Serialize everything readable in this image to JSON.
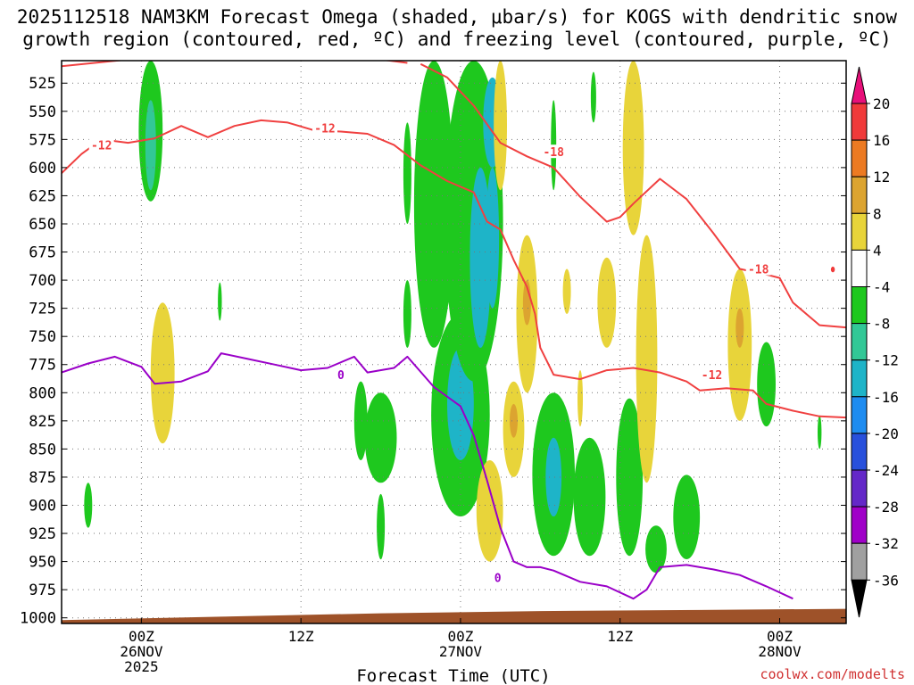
{
  "header": {
    "title_line1": "2025112518 NAM3KM Forecast Omega (shaded, μbar/s) for KOGS with dendritic snow",
    "title_line2": "growth region (contoured, red, ºC) and freezing level (contoured, purple, ºC)"
  },
  "footer": {
    "xlabel": "Forecast Time (UTC)",
    "credit": "coolwx.com/modelts"
  },
  "colors": {
    "dgz_contour": "#f04040",
    "freezing_contour": "#9a00c8",
    "terrain": "#9e5229",
    "credit": "#d03030"
  },
  "chart_data": {
    "type": "time-height",
    "y_axis": {
      "label": "Pressure (hPa)",
      "ticks": [
        "525",
        "550",
        "575",
        "600",
        "625",
        "650",
        "675",
        "700",
        "725",
        "750",
        "775",
        "800",
        "825",
        "850",
        "875",
        "900",
        "925",
        "950",
        "975",
        "1000"
      ],
      "range": [
        1005,
        505
      ]
    },
    "x_axis": {
      "range_hours": [
        -6,
        53
      ],
      "ticks": [
        {
          "hour": 0,
          "label": "00Z",
          "sub": "26NOV",
          "sub2": "2025"
        },
        {
          "hour": 12,
          "label": "12Z",
          "sub": "",
          "sub2": ""
        },
        {
          "hour": 24,
          "label": "00Z",
          "sub": "27NOV",
          "sub2": ""
        },
        {
          "hour": 36,
          "label": "12Z",
          "sub": "",
          "sub2": ""
        },
        {
          "hour": 48,
          "label": "00Z",
          "sub": "28NOV",
          "sub2": ""
        }
      ]
    },
    "colorbar": {
      "labels": [
        "20",
        "16",
        "12",
        "8",
        "4",
        "-4",
        "-8",
        "-12",
        "-16",
        "-20",
        "-24",
        "-28",
        "-32",
        "-36"
      ],
      "colors": [
        "#f03a3a",
        "#ec7a22",
        "#dca430",
        "#e8d43a",
        "#ffffff",
        "#1ec81e",
        "#32c896",
        "#1eb4c8",
        "#1e8cf0",
        "#2850dc",
        "#6428c8",
        "#a000c8",
        "#a0a0a0"
      ],
      "top_color": "#e8107a",
      "bottom_color": "#000000"
    },
    "contour_labels": [
      {
        "text": "-12",
        "hour": -3.0,
        "p": 580
      },
      {
        "text": "-12",
        "hour": 13.8,
        "p": 565
      },
      {
        "text": "-18",
        "hour": 31.0,
        "p": 586
      },
      {
        "text": "-12",
        "hour": 42.9,
        "p": 784
      },
      {
        "text": "-18",
        "hour": 46.4,
        "p": 690
      },
      {
        "text": "0",
        "hour": 15.0,
        "p": 784
      },
      {
        "text": "0",
        "hour": 26.8,
        "p": 964
      }
    ],
    "dgz_minus12": [
      [
        -6,
        605
      ],
      [
        -4.5,
        588
      ],
      [
        -3,
        575
      ],
      [
        -1,
        578
      ],
      [
        1,
        574
      ],
      [
        3,
        563
      ],
      [
        5,
        573
      ],
      [
        7,
        563
      ],
      [
        9,
        558
      ],
      [
        11,
        560
      ],
      [
        13,
        567
      ],
      [
        15,
        568
      ],
      [
        17,
        570
      ],
      [
        19,
        580
      ],
      [
        21,
        598
      ],
      [
        23,
        612
      ],
      [
        25,
        622
      ],
      [
        26,
        648
      ],
      [
        27,
        655
      ],
      [
        28,
        682
      ],
      [
        29,
        706
      ],
      [
        29.6,
        730
      ],
      [
        30,
        760
      ],
      [
        31,
        784
      ],
      [
        33,
        788
      ],
      [
        35,
        780
      ],
      [
        37,
        778
      ],
      [
        39,
        782
      ],
      [
        41,
        790
      ],
      [
        42,
        798
      ],
      [
        44,
        796
      ],
      [
        46,
        798
      ],
      [
        47,
        810
      ],
      [
        49,
        816
      ],
      [
        51,
        821
      ],
      [
        53,
        822
      ]
    ],
    "dgz_minus18": [
      [
        21,
        508
      ],
      [
        23,
        520
      ],
      [
        25,
        545
      ],
      [
        27,
        578
      ],
      [
        29,
        590
      ],
      [
        31,
        600
      ],
      [
        33,
        626
      ],
      [
        35,
        648
      ],
      [
        36,
        644
      ],
      [
        37,
        632
      ],
      [
        39,
        610
      ],
      [
        41,
        628
      ],
      [
        43,
        658
      ],
      [
        45,
        690
      ],
      [
        47,
        695
      ],
      [
        48,
        698
      ],
      [
        49,
        720
      ],
      [
        51,
        740
      ],
      [
        53,
        742
      ]
    ],
    "dgz_minus12_top": [
      [
        -6,
        510
      ],
      [
        -1,
        504
      ],
      [
        4,
        501
      ],
      [
        12,
        504
      ],
      [
        18,
        504
      ],
      [
        20,
        507
      ]
    ],
    "freezing_level": [
      [
        -6,
        782
      ],
      [
        -4,
        774
      ],
      [
        -2,
        768
      ],
      [
        0,
        777
      ],
      [
        1,
        792
      ],
      [
        3,
        790
      ],
      [
        5,
        781
      ],
      [
        6,
        765
      ],
      [
        8,
        770
      ],
      [
        10,
        775
      ],
      [
        12,
        780
      ],
      [
        14,
        778
      ],
      [
        16,
        768
      ],
      [
        17,
        782
      ],
      [
        19,
        778
      ],
      [
        20,
        768
      ],
      [
        22,
        795
      ],
      [
        24,
        812
      ],
      [
        25,
        838
      ],
      [
        26,
        878
      ],
      [
        27,
        920
      ],
      [
        28,
        950
      ],
      [
        29,
        955
      ],
      [
        30,
        955
      ],
      [
        31,
        958
      ],
      [
        33,
        968
      ],
      [
        35,
        972
      ],
      [
        37,
        983
      ],
      [
        38,
        975
      ],
      [
        39,
        955
      ],
      [
        41,
        953
      ],
      [
        43,
        957
      ],
      [
        45,
        962
      ],
      [
        47,
        972
      ],
      [
        49,
        983
      ]
    ],
    "terrain_p": [
      [
        -6,
        1002
      ],
      [
        6,
        999
      ],
      [
        18,
        996
      ],
      [
        30,
        994
      ],
      [
        42,
        993
      ],
      [
        53,
        992
      ]
    ],
    "omega_blobs": [
      {
        "hour": 0.7,
        "p1": 505,
        "p2": 630,
        "half_width_h": 0.9,
        "value": -6
      },
      {
        "hour": 0.7,
        "p1": 540,
        "p2": 620,
        "half_width_h": 0.4,
        "value": -10
      },
      {
        "hour": 1.6,
        "p1": 720,
        "p2": 845,
        "half_width_h": 0.9,
        "value": 6
      },
      {
        "hour": -4.0,
        "p1": 880,
        "p2": 920,
        "half_width_h": 0.3,
        "value": -6
      },
      {
        "hour": 5.9,
        "p1": 702,
        "p2": 736,
        "half_width_h": 0.15,
        "value": -6
      },
      {
        "hour": 16.5,
        "p1": 790,
        "p2": 860,
        "half_width_h": 0.5,
        "value": -6
      },
      {
        "hour": 18.0,
        "p1": 800,
        "p2": 880,
        "half_width_h": 1.2,
        "value": -6
      },
      {
        "hour": 18.0,
        "p1": 890,
        "p2": 948,
        "half_width_h": 0.3,
        "value": -6
      },
      {
        "hour": 20.0,
        "p1": 700,
        "p2": 760,
        "half_width_h": 0.3,
        "value": -6
      },
      {
        "hour": 20.0,
        "p1": 560,
        "p2": 650,
        "half_width_h": 0.3,
        "value": -6
      },
      {
        "hour": 22.0,
        "p1": 505,
        "p2": 760,
        "half_width_h": 1.5,
        "value": -6
      },
      {
        "hour": 24.0,
        "p1": 730,
        "p2": 910,
        "half_width_h": 2.2,
        "value": -6
      },
      {
        "hour": 24.0,
        "p1": 760,
        "p2": 860,
        "half_width_h": 1.0,
        "value": -12
      },
      {
        "hour": 25.0,
        "p1": 505,
        "p2": 790,
        "half_width_h": 2.2,
        "value": -6
      },
      {
        "hour": 25.5,
        "p1": 600,
        "p2": 760,
        "half_width_h": 0.8,
        "value": -12
      },
      {
        "hour": 26.4,
        "p1": 520,
        "p2": 600,
        "half_width_h": 0.7,
        "value": -12
      },
      {
        "hour": 26.4,
        "p1": 600,
        "p2": 725,
        "half_width_h": 0.5,
        "value": -14
      },
      {
        "hour": 26.2,
        "p1": 860,
        "p2": 950,
        "half_width_h": 1.0,
        "value": 6
      },
      {
        "hour": 28.0,
        "p1": 790,
        "p2": 875,
        "half_width_h": 0.8,
        "value": 6
      },
      {
        "hour": 28.0,
        "p1": 810,
        "p2": 840,
        "half_width_h": 0.3,
        "value": 10
      },
      {
        "hour": 27.0,
        "p1": 505,
        "p2": 620,
        "half_width_h": 0.5,
        "value": 6
      },
      {
        "hour": 29.0,
        "p1": 660,
        "p2": 800,
        "half_width_h": 0.8,
        "value": 6
      },
      {
        "hour": 29.0,
        "p1": 700,
        "p2": 740,
        "half_width_h": 0.3,
        "value": 10
      },
      {
        "hour": 31.0,
        "p1": 800,
        "p2": 945,
        "half_width_h": 1.6,
        "value": -6
      },
      {
        "hour": 31.0,
        "p1": 840,
        "p2": 910,
        "half_width_h": 0.6,
        "value": -12
      },
      {
        "hour": 32.0,
        "p1": 690,
        "p2": 730,
        "half_width_h": 0.3,
        "value": 6
      },
      {
        "hour": 31.0,
        "p1": 540,
        "p2": 620,
        "half_width_h": 0.2,
        "value": -6
      },
      {
        "hour": 35.0,
        "p1": 680,
        "p2": 760,
        "half_width_h": 0.7,
        "value": 6
      },
      {
        "hour": 33.0,
        "p1": 780,
        "p2": 830,
        "half_width_h": 0.2,
        "value": 6
      },
      {
        "hour": 33.7,
        "p1": 840,
        "p2": 945,
        "half_width_h": 1.2,
        "value": -6
      },
      {
        "hour": 36.7,
        "p1": 805,
        "p2": 945,
        "half_width_h": 1.0,
        "value": -6
      },
      {
        "hour": 34.0,
        "p1": 515,
        "p2": 560,
        "half_width_h": 0.2,
        "value": -6
      },
      {
        "hour": 37.0,
        "p1": 505,
        "p2": 660,
        "half_width_h": 0.8,
        "value": 6
      },
      {
        "hour": 38.0,
        "p1": 660,
        "p2": 880,
        "half_width_h": 0.8,
        "value": 6
      },
      {
        "hour": 38.7,
        "p1": 918,
        "p2": 960,
        "half_width_h": 0.8,
        "value": -6
      },
      {
        "hour": 41.0,
        "p1": 873,
        "p2": 948,
        "half_width_h": 1.0,
        "value": -6
      },
      {
        "hour": 45.0,
        "p1": 690,
        "p2": 825,
        "half_width_h": 0.9,
        "value": 6
      },
      {
        "hour": 45.0,
        "p1": 725,
        "p2": 760,
        "half_width_h": 0.3,
        "value": 10
      },
      {
        "hour": 47.0,
        "p1": 755,
        "p2": 830,
        "half_width_h": 0.7,
        "value": -6
      },
      {
        "hour": 51.0,
        "p1": 820,
        "p2": 850,
        "half_width_h": 0.15,
        "value": -6
      },
      {
        "hour": 52.0,
        "p1": 688,
        "p2": 693,
        "half_width_h": 0.15,
        "value": 16
      }
    ]
  }
}
